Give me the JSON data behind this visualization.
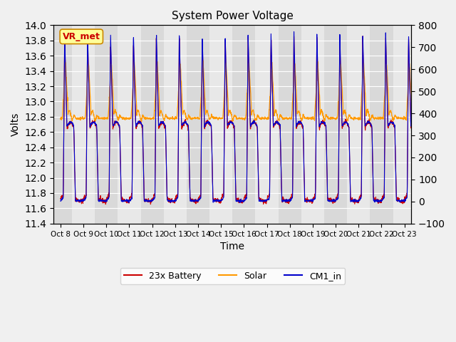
{
  "title": "System Power Voltage",
  "xlabel": "Time",
  "ylabel_left": "Volts",
  "ylim_left": [
    11.4,
    14.0
  ],
  "ylim_right": [
    -100,
    800
  ],
  "yticks_left": [
    11.4,
    11.6,
    11.8,
    12.0,
    12.2,
    12.4,
    12.6,
    12.8,
    13.0,
    13.2,
    13.4,
    13.6,
    13.8,
    14.0
  ],
  "yticks_right": [
    -100,
    0,
    100,
    200,
    300,
    400,
    500,
    600,
    700,
    800
  ],
  "xtick_labels": [
    "Oct 8",
    "Oct 9",
    "Oct 10",
    "Oct 11",
    "Oct 12",
    "Oct 13",
    "Oct 14",
    "Oct 15",
    "Oct 16",
    "Oct 17",
    "Oct 18",
    "Oct 19",
    "Oct 20",
    "Oct 21",
    "Oct 22",
    "Oct 23"
  ],
  "color_battery": "#cc0000",
  "color_solar": "#ff9900",
  "color_cm1": "#0000cc",
  "legend_label_battery": "23x Battery",
  "legend_label_solar": "Solar",
  "legend_label_cm1": "CM1_in",
  "annotation_text": "VR_met",
  "background_color": "#f0f0f0",
  "plot_bg_color": "#e8e8e8",
  "num_days": 16,
  "pts_per_day": 120
}
